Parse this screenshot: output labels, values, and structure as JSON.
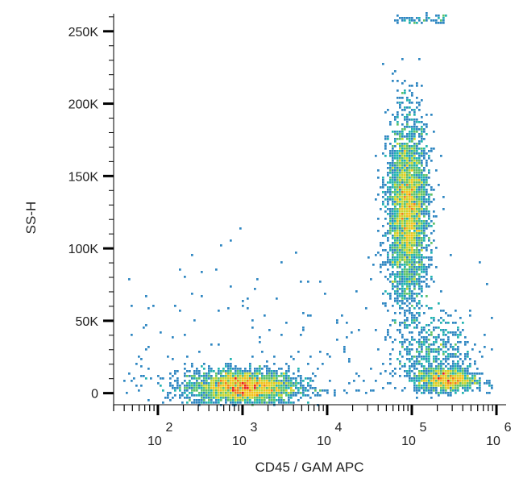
{
  "chart_data": {
    "type": "scatter",
    "style": "density-dot-plot",
    "title": "",
    "xlabel": "CD45 / GAM APC",
    "ylabel": "SS-H",
    "x_scale": "log",
    "xlim": [
      30,
      1300000
    ],
    "ylim": [
      -8000,
      262144
    ],
    "x_ticks": [
      {
        "value": 100,
        "base": "10",
        "exp": "2"
      },
      {
        "value": 1000,
        "base": "10",
        "exp": "3"
      },
      {
        "value": 10000,
        "base": "10",
        "exp": "4"
      },
      {
        "value": 100000,
        "base": "10",
        "exp": "5"
      },
      {
        "value": 1000000,
        "base": "10",
        "exp": "6"
      }
    ],
    "y_ticks": [
      {
        "value": 0,
        "label": "0"
      },
      {
        "value": 50000,
        "label": "50K"
      },
      {
        "value": 100000,
        "label": "100K"
      },
      {
        "value": 150000,
        "label": "150K"
      },
      {
        "value": 200000,
        "label": "200K"
      },
      {
        "value": 250000,
        "label": "250K"
      }
    ],
    "density_colors": [
      "#3b4fa8",
      "#2e86c1",
      "#22b3b0",
      "#5fc26a",
      "#c7d62e",
      "#f2c21b",
      "#f07f16",
      "#e8201d"
    ],
    "populations": [
      {
        "x_center": 1000,
        "x_spread_decades": 0.33,
        "y_center": 4000,
        "y_spread": 6000,
        "count": 2600
      },
      {
        "x_center": 90000,
        "x_spread_decades": 0.12,
        "y_center": 125000,
        "y_spread": 32000,
        "count": 3400
      },
      {
        "x_center": 180000,
        "x_spread_decades": 0.22,
        "y_center": 28000,
        "y_spread": 12000,
        "count": 500
      },
      {
        "x_center": 260000,
        "x_spread_decades": 0.18,
        "y_center": 9000,
        "y_spread": 4000,
        "count": 900
      }
    ],
    "grid": false,
    "legend": "none"
  }
}
